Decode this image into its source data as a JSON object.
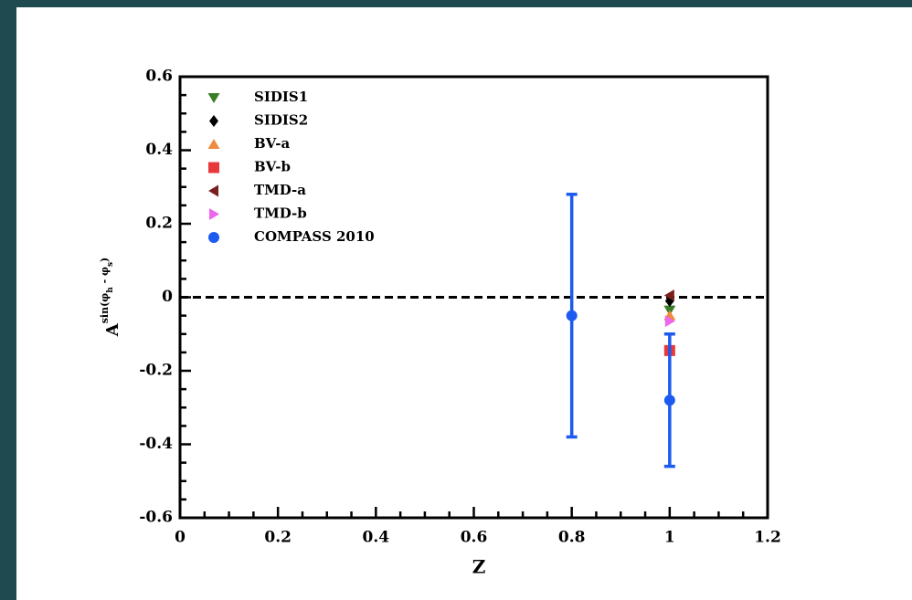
{
  "chart_data": {
    "type": "scatter",
    "xlabel": "Z",
    "ylabel": [
      "A",
      "sin(φ",
      "h",
      " - φ",
      "s",
      ")"
    ],
    "xlim": [
      0,
      1.2
    ],
    "xticks": [
      0,
      0.2,
      0.4,
      0.6,
      0.8,
      1,
      1.2
    ],
    "ylim": [
      -0.6,
      0.6
    ],
    "yticks": [
      -0.6,
      -0.4,
      -0.2,
      0,
      0.2,
      0.4,
      0.6
    ],
    "hline": 0,
    "legend": "upper left",
    "series": [
      {
        "name": "SIDIS1",
        "color": "#3a7d27",
        "marker": "v",
        "x": [
          1
        ],
        "values": [
          -0.035
        ]
      },
      {
        "name": "SIDIS2",
        "color": "#000000",
        "marker": "D",
        "x": [
          1
        ],
        "values": [
          -0.01
        ]
      },
      {
        "name": "BV-a",
        "color": "#f08a3c",
        "marker": "^",
        "x": [
          1
        ],
        "values": [
          -0.05
        ]
      },
      {
        "name": "BV-b",
        "color": "#e8383b",
        "marker": "s",
        "x": [
          1
        ],
        "values": [
          -0.145
        ]
      },
      {
        "name": "TMD-a",
        "color": "#7a1f1f",
        "marker": "<",
        "x": [
          1
        ],
        "values": [
          0.005
        ]
      },
      {
        "name": "TMD-b",
        "color": "#ee66ee",
        "marker": ">",
        "x": [
          1
        ],
        "values": [
          -0.065
        ]
      },
      {
        "name": "COMPASS 2010",
        "color": "#1d5bf0",
        "marker": "o",
        "x": [
          0.8,
          1
        ],
        "values": [
          -0.05,
          -0.28
        ],
        "errors": [
          0.33,
          0.18
        ]
      }
    ]
  }
}
